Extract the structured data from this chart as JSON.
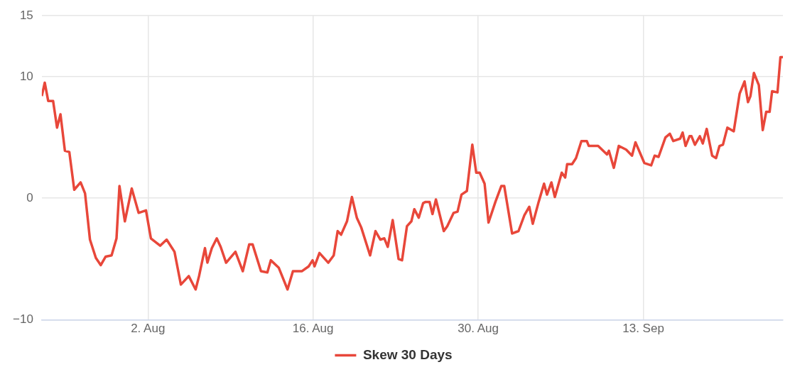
{
  "chart_data": {
    "type": "line",
    "legend": "bottom",
    "grid": true,
    "xlim": [
      "--07-24T00:00",
      "--09-24T20:00"
    ],
    "xticks": [
      {
        "value": "--08-02",
        "label": "2. Aug"
      },
      {
        "value": "--08-16",
        "label": "16. Aug"
      },
      {
        "value": "--08-30",
        "label": "30. Aug"
      },
      {
        "value": "--09-13",
        "label": "13. Sep"
      }
    ],
    "ylim": [
      -10,
      15
    ],
    "yticks": [
      {
        "value": -10,
        "label": "−10"
      },
      0,
      10,
      15
    ],
    "series": [
      {
        "name": "Skew 30 Days",
        "color": "#e8473a",
        "x": [
          "--07-24T00:00",
          "--07-24T06:00",
          "--07-24T13:00",
          "--07-24T23:00",
          "--07-25T07:00",
          "--07-25T14:00",
          "--07-25T23:00",
          "--07-26T08:00",
          "--07-26T18:00",
          "--07-27T07:00",
          "--07-27T16:00",
          "--07-28T02:00",
          "--07-28T14:00",
          "--07-29T00:00",
          "--07-29T10:00",
          "--07-29T22:00",
          "--07-30T08:00",
          "--07-30T14:00",
          "--07-31T01:00",
          "--07-31T15:00",
          "--08-01T05:00",
          "--08-01T20:00",
          "--08-02T06:00",
          "--08-03T01:00",
          "--08-03T14:00",
          "--08-04T06:00",
          "--08-04T19:00",
          "--08-05T11:00",
          "--08-06T01:00",
          "--08-06T08:00",
          "--08-06T20:00",
          "--08-07T01:00",
          "--08-07T10:00",
          "--08-07T20:00",
          "--08-08T04:00",
          "--08-08T15:00",
          "--08-09T10:00",
          "--08-10T01:00",
          "--08-10T14:00",
          "--08-10T21:00",
          "--08-11T14:00",
          "--08-12T03:00",
          "--08-12T10:00",
          "--08-13T02:00",
          "--08-13T09:00",
          "--08-13T20:00",
          "--08-14T07:00",
          "--08-15T01:00",
          "--08-15T15:00",
          "--08-15T23:00",
          "--08-16T03:00",
          "--08-16T13:00",
          "--08-17T07:00",
          "--08-17T18:00",
          "--08-18T02:00",
          "--08-18T09:00",
          "--08-18T21:00",
          "--08-19T07:00",
          "--08-19T17:00",
          "--08-20T02:00",
          "--08-20T20:00",
          "--08-21T07:00",
          "--08-21T17:00",
          "--08-22T01:00",
          "--08-22T08:00",
          "--08-22T18:00",
          "--08-23T06:00",
          "--08-23T13:00",
          "--08-23T23:00",
          "--08-24T08:00",
          "--08-24T14:00",
          "--08-24T23:00",
          "--08-25T08:00",
          "--08-25T13:00",
          "--08-25T21:00",
          "--08-26T03:00",
          "--08-26T10:00",
          "--08-27T02:00",
          "--08-27T09:00",
          "--08-27T22:00",
          "--08-28T06:00",
          "--08-28T14:00",
          "--08-29T01:00",
          "--08-29T12:00",
          "--08-29T20:00",
          "--08-30T03:00",
          "--08-30T13:00",
          "--08-30T21:00",
          "--08-31T11:00",
          "--08-31T23:00",
          "--09-01T05:00",
          "--09-01T21:00",
          "--09-02T10:00",
          "--09-02T22:00",
          "--09-03T08:00",
          "--09-03T15:00",
          "--09-04T03:00",
          "--09-04T14:00",
          "--09-04T20:00",
          "--09-05T05:00",
          "--09-05T12:00",
          "--09-06T02:00",
          "--09-06T09:00",
          "--09-06T13:00",
          "--09-06T23:00",
          "--09-07T07:00",
          "--09-07T18:00",
          "--09-08T05:00",
          "--09-08T09:00",
          "--09-09T04:00",
          "--09-09T22:00",
          "--09-10T02:00",
          "--09-10T12:00",
          "--09-10T22:00",
          "--09-11T13:00",
          "--09-12T01:00",
          "--09-12T08:00",
          "--09-13T02:00",
          "--09-13T16:00",
          "--09-13T23:00",
          "--09-14T07:00",
          "--09-14T21:00",
          "--09-15T06:00",
          "--09-15T13:00",
          "--09-16T03:00",
          "--09-16T08:00",
          "--09-16T14:00",
          "--09-16T22:00",
          "--09-17T02:00",
          "--09-17T09:00",
          "--09-17T19:00",
          "--09-18T01:00",
          "--09-18T09:00",
          "--09-18T20:00",
          "--09-19T04:00",
          "--09-19T11:00",
          "--09-19T18:00",
          "--09-20T03:00",
          "--09-20T16:00",
          "--09-21T04:00",
          "--09-21T14:00",
          "--09-21T21:00",
          "--09-22T02:00",
          "--09-22T09:00",
          "--09-22T19:00",
          "--09-23T03:00",
          "--09-23T10:00",
          "--09-23T17:00",
          "--09-23T22:00",
          "--09-24T09:00",
          "--09-24T15:00",
          "--09-24T20:00"
        ],
        "values": [
          8.4,
          9.5,
          8.0,
          8.0,
          5.8,
          6.9,
          3.9,
          3.8,
          0.7,
          1.3,
          0.4,
          -3.4,
          -4.9,
          -5.5,
          -4.8,
          -4.7,
          -3.3,
          1.0,
          -1.9,
          0.8,
          -1.2,
          -1.0,
          -3.3,
          -3.9,
          -3.4,
          -4.4,
          -7.1,
          -6.4,
          -7.5,
          -6.4,
          -4.1,
          -5.3,
          -4.1,
          -3.3,
          -4.0,
          -5.3,
          -4.4,
          -6.0,
          -3.8,
          -3.8,
          -6.0,
          -6.1,
          -5.1,
          -5.7,
          -6.4,
          -7.5,
          -6.0,
          -6.0,
          -5.6,
          -5.1,
          -5.6,
          -4.5,
          -5.3,
          -4.7,
          -2.7,
          -3.0,
          -1.9,
          0.1,
          -1.6,
          -2.4,
          -4.7,
          -2.7,
          -3.4,
          -3.3,
          -4.0,
          -1.8,
          -5.0,
          -5.1,
          -2.3,
          -1.9,
          -0.9,
          -1.6,
          -0.4,
          -0.3,
          -0.3,
          -1.3,
          -0.1,
          -2.7,
          -2.3,
          -1.2,
          -1.1,
          0.3,
          0.6,
          4.4,
          2.1,
          2.1,
          1.2,
          -2.0,
          -0.3,
          1.0,
          1.0,
          -2.9,
          -2.7,
          -1.4,
          -0.7,
          -2.1,
          -0.3,
          1.2,
          0.3,
          1.3,
          0.1,
          2.1,
          1.7,
          2.8,
          2.8,
          3.3,
          4.7,
          4.7,
          4.3,
          4.3,
          3.6,
          3.9,
          2.5,
          4.3,
          4.0,
          3.5,
          4.6,
          2.9,
          2.7,
          3.5,
          3.4,
          5.0,
          5.3,
          4.7,
          4.9,
          5.4,
          4.3,
          5.1,
          5.1,
          4.4,
          5.1,
          4.5,
          5.7,
          3.5,
          3.3,
          4.3,
          4.4,
          5.8,
          5.5,
          8.6,
          9.6,
          7.9,
          8.4,
          10.3,
          9.3,
          5.6,
          7.1,
          7.1,
          8.8,
          8.7,
          11.6,
          11.6
        ]
      }
    ]
  }
}
